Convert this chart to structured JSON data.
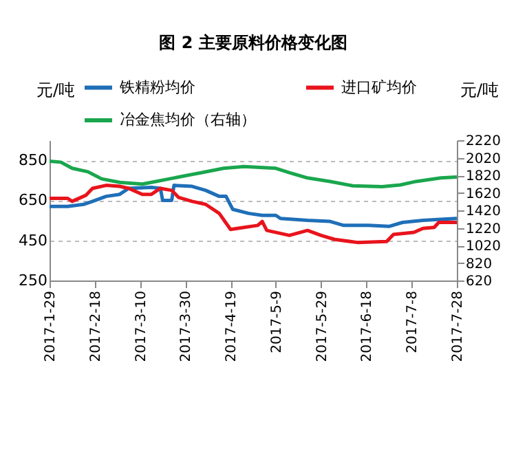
{
  "chart_data": {
    "type": "line",
    "title": "图 2  主要原料价格变化图",
    "ylabel": "元/吨",
    "y2label": "元/吨",
    "xlim": [
      "2017-01-29",
      "2017-07-28"
    ],
    "xticks": [
      {
        "value": "2017-01-29",
        "label": "2017-1-29"
      },
      {
        "value": "2017-02-18",
        "label": "2017-2-18"
      },
      {
        "value": "2017-03-10",
        "label": "2017-3-10"
      },
      {
        "value": "2017-03-30",
        "label": "2017-3-30"
      },
      {
        "value": "2017-04-19",
        "label": "2017-4-19"
      },
      {
        "value": "2017-05-09",
        "label": "2017-5-9"
      },
      {
        "value": "2017-05-29",
        "label": "2017-5-29"
      },
      {
        "value": "2017-06-18",
        "label": "2017-6-18"
      },
      {
        "value": "2017-07-08",
        "label": "2017-7-8"
      },
      {
        "value": "2017-07-28",
        "label": "2017-7-28"
      }
    ],
    "ylim": [
      250,
      950
    ],
    "yticks": [
      250,
      450,
      650,
      850
    ],
    "y2lim": [
      620,
      2220
    ],
    "y2ticks": [
      620,
      820,
      1020,
      1220,
      1420,
      1620,
      1820,
      2020,
      2220
    ],
    "grid": "y",
    "legend": "top",
    "series": [
      {
        "name": "铁精粉均价",
        "color": "#1f6fb8",
        "x": [
          "2017-01-29",
          "2017-02-06",
          "2017-02-13",
          "2017-02-17",
          "2017-02-23",
          "2017-03-01",
          "2017-03-05",
          "2017-03-15",
          "2017-03-19",
          "2017-03-20",
          "2017-03-24",
          "2017-03-25",
          "2017-04-02",
          "2017-04-08",
          "2017-04-14",
          "2017-04-17",
          "2017-04-20",
          "2017-04-27",
          "2017-05-03",
          "2017-05-09",
          "2017-05-11",
          "2017-05-23",
          "2017-06-02",
          "2017-06-08",
          "2017-06-19",
          "2017-06-28",
          "2017-07-04",
          "2017-07-13",
          "2017-07-21",
          "2017-07-28"
        ],
        "values": [
          620,
          620,
          630,
          645,
          670,
          680,
          710,
          715,
          710,
          650,
          650,
          725,
          720,
          700,
          670,
          670,
          605,
          585,
          575,
          575,
          560,
          550,
          545,
          525,
          525,
          520,
          540,
          550,
          555,
          560
        ]
      },
      {
        "name": "进口矿均价",
        "color": "#e8141c",
        "x": [
          "2017-01-29",
          "2017-02-06",
          "2017-02-08",
          "2017-02-14",
          "2017-02-17",
          "2017-02-23",
          "2017-03-01",
          "2017-03-05",
          "2017-03-11",
          "2017-03-15",
          "2017-03-19",
          "2017-03-24",
          "2017-03-27",
          "2017-04-02",
          "2017-04-08",
          "2017-04-14",
          "2017-04-19",
          "2017-04-25",
          "2017-05-01",
          "2017-05-03",
          "2017-05-05",
          "2017-05-15",
          "2017-05-23",
          "2017-05-29",
          "2017-06-04",
          "2017-06-14",
          "2017-06-27",
          "2017-06-30",
          "2017-07-09",
          "2017-07-13",
          "2017-07-18",
          "2017-07-20",
          "2017-07-28"
        ],
        "values": [
          660,
          660,
          645,
          675,
          710,
          725,
          720,
          710,
          680,
          680,
          710,
          700,
          665,
          645,
          630,
          585,
          505,
          515,
          525,
          545,
          500,
          475,
          500,
          475,
          455,
          440,
          445,
          480,
          490,
          510,
          515,
          540,
          540
        ]
      },
      {
        "name": "冶金焦均价（右轴）",
        "color": "#1aa64e",
        "axis": "y2",
        "x": [
          "2017-01-29",
          "2017-02-03",
          "2017-02-08",
          "2017-02-15",
          "2017-02-21",
          "2017-03-01",
          "2017-03-11",
          "2017-03-17",
          "2017-03-23",
          "2017-03-29",
          "2017-04-06",
          "2017-04-16",
          "2017-04-25",
          "2017-05-09",
          "2017-05-15",
          "2017-05-23",
          "2017-06-02",
          "2017-06-12",
          "2017-06-25",
          "2017-07-03",
          "2017-07-10",
          "2017-07-21",
          "2017-07-28"
        ],
        "values": [
          1980,
          1970,
          1900,
          1860,
          1780,
          1740,
          1720,
          1750,
          1780,
          1810,
          1850,
          1900,
          1920,
          1900,
          1850,
          1790,
          1750,
          1700,
          1690,
          1710,
          1750,
          1790,
          1800
        ]
      }
    ]
  }
}
